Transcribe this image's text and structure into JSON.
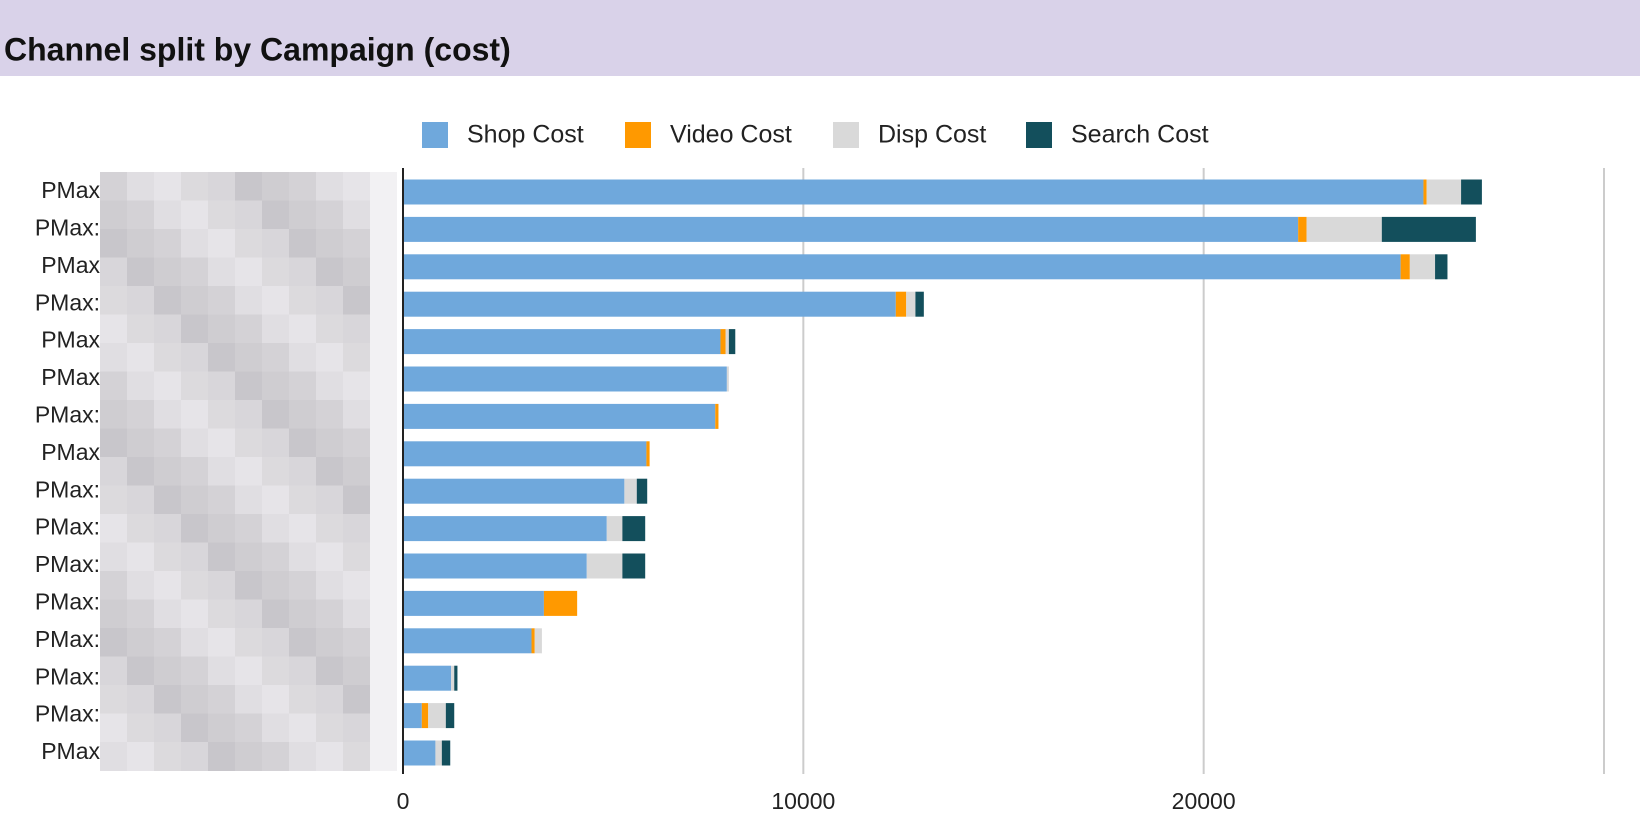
{
  "chart_data": {
    "type": "stacked-barh",
    "title": "Channel split by Campaign (cost)",
    "categories": [
      "PMax",
      "PMax:",
      "PMax",
      "PMax:",
      "PMax",
      "PMax",
      "PMax:",
      "PMax",
      "PMax:",
      "PMax:",
      "PMax:",
      "PMax:",
      "PMax:",
      "PMax:",
      "PMax:",
      "PMax"
    ],
    "series": [
      {
        "name": "Shop Cost",
        "color": "#6fa8dc",
        "values": [
          25490,
          22360,
          24920,
          12310,
          7930,
          8090,
          7800,
          6080,
          5530,
          5090,
          4590,
          3520,
          3210,
          1200,
          470,
          810
        ]
      },
      {
        "name": "Video Cost",
        "color": "#ff9900",
        "values": [
          80,
          210,
          230,
          260,
          130,
          0,
          80,
          80,
          0,
          0,
          0,
          830,
          80,
          0,
          160,
          0
        ]
      },
      {
        "name": "Disp Cost",
        "color": "#d9d9d9",
        "values": [
          860,
          1880,
          630,
          230,
          80,
          50,
          0,
          0,
          310,
          390,
          890,
          0,
          180,
          80,
          440,
          160
        ]
      },
      {
        "name": "Search Cost",
        "color": "#134f5c",
        "values": [
          520,
          2350,
          310,
          210,
          160,
          0,
          0,
          0,
          260,
          570,
          570,
          0,
          0,
          80,
          210,
          210
        ]
      }
    ],
    "xlim": [
      0,
      30000
    ],
    "xticks": [
      0,
      10000,
      20000
    ],
    "grid": true
  }
}
